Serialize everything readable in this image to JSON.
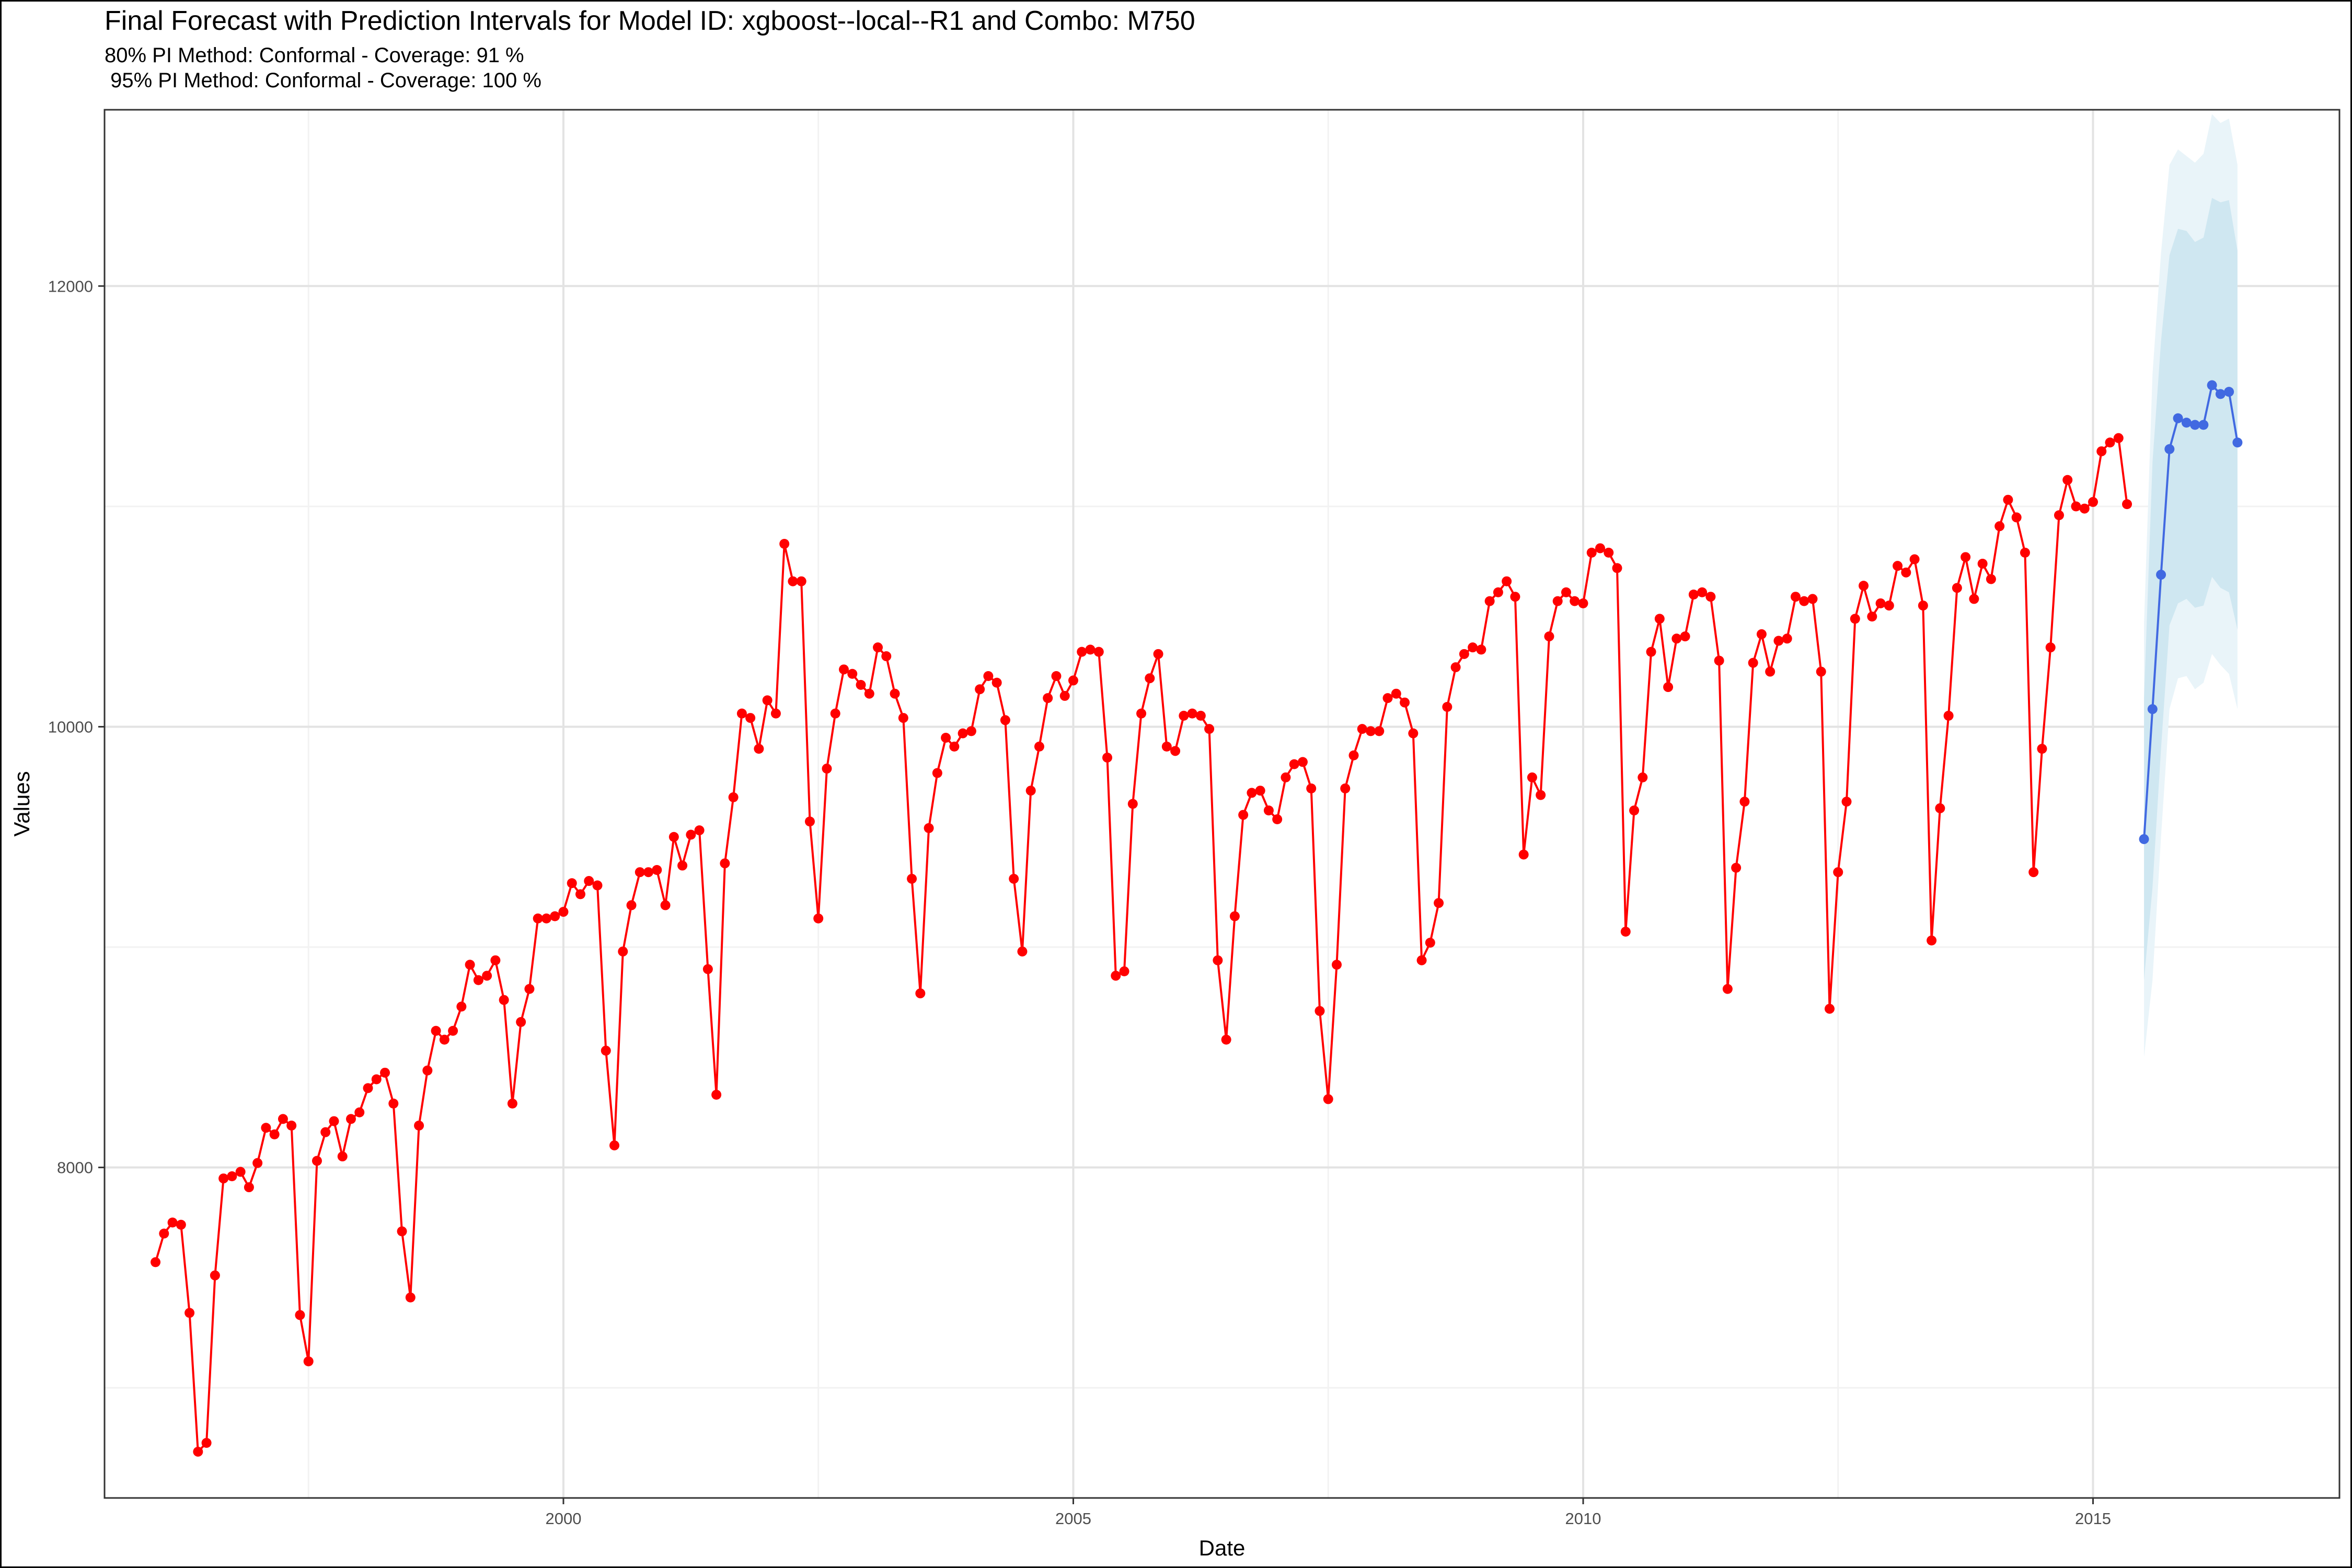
{
  "title": "Final Forecast with Prediction Intervals for Model ID: xgboost--local--R1 and Combo: M750",
  "subtitle_line1": "80% PI Method: Conformal - Coverage: 91 %",
  "subtitle_line2": " 95% PI Method: Conformal - Coverage: 100 %",
  "colors": {
    "actual": "#ff0000",
    "forecast": "#4169e1",
    "pi80": "#cfe7f1",
    "pi95": "#e9f4f9",
    "grid_major": "#e3e3e3",
    "grid_minor": "#f2f2f2",
    "panel_border": "#333333"
  },
  "chart_data": {
    "type": "line",
    "xlabel": "Date",
    "ylabel": "Values",
    "x_ticks": [
      "2000",
      "2005",
      "2010",
      "2015"
    ],
    "y_ticks": [
      8000,
      10000,
      12000
    ],
    "xlim": [
      "1995-07",
      "2017-06"
    ],
    "ylim": [
      6500,
      12800
    ],
    "grid": true,
    "legend": "none",
    "series": [
      {
        "role": "actual",
        "start": "1996-01",
        "step": "month",
        "values": [
          7570,
          7700,
          7750,
          7740,
          7340,
          6710,
          6750,
          7510,
          7950,
          7960,
          7980,
          7910,
          8020,
          8180,
          8150,
          8220,
          8190,
          7330,
          7120,
          8030,
          8160,
          8210,
          8050,
          8220,
          8250,
          8360,
          8400,
          8430,
          8290,
          7710,
          7410,
          8190,
          8440,
          8620,
          8580,
          8620,
          8730,
          8920,
          8850,
          8870,
          8940,
          8760,
          8290,
          8660,
          8810,
          9130,
          9130,
          9140,
          9160,
          9290,
          9240,
          9300,
          9280,
          8530,
          8100,
          8980,
          9190,
          9340,
          9340,
          9350,
          9190,
          9500,
          9370,
          9510,
          9530,
          8900,
          8330,
          9380,
          9680,
          10060,
          10040,
          9900,
          10120,
          10060,
          10830,
          10660,
          10660,
          9570,
          9130,
          9810,
          10060,
          10260,
          10240,
          10190,
          10150,
          10360,
          10320,
          10150,
          10040,
          9310,
          8790,
          9540,
          9790,
          9950,
          9910,
          9970,
          9980,
          10170,
          10230,
          10200,
          10030,
          9310,
          8980,
          9710,
          9910,
          10130,
          10230,
          10140,
          10210,
          10340,
          10350,
          10340,
          9860,
          8870,
          8890,
          9650,
          10060,
          10220,
          10330,
          9910,
          9890,
          10050,
          10060,
          10050,
          9990,
          8940,
          8580,
          9140,
          9600,
          9700,
          9710,
          9620,
          9580,
          9770,
          9830,
          9840,
          9720,
          8710,
          8310,
          8920,
          9720,
          9870,
          9990,
          9980,
          9980,
          10130,
          10150,
          10110,
          9970,
          8940,
          9020,
          9200,
          10090,
          10270,
          10330,
          10360,
          10350,
          10570,
          10610,
          10660,
          10590,
          9420,
          9770,
          9690,
          10410,
          10570,
          10610,
          10570,
          10560,
          10790,
          10810,
          10790,
          10720,
          9070,
          9620,
          9770,
          10340,
          10490,
          10180,
          10400,
          10410,
          10600,
          10610,
          10590,
          10300,
          8810,
          9360,
          9660,
          10290,
          10420,
          10250,
          10390,
          10400,
          10590,
          10570,
          10580,
          10250,
          8720,
          9340,
          9660,
          10490,
          10640,
          10500,
          10560,
          10550,
          10730,
          10700,
          10760,
          10550,
          9030,
          9630,
          10050,
          10630,
          10770,
          10580,
          10740,
          10670,
          10910,
          11030,
          10950,
          10790,
          9340,
          9900,
          10360,
          10960,
          11120,
          11000,
          10990,
          11020,
          11250,
          11290,
          11310,
          11010
        ]
      },
      {
        "role": "forecast",
        "start": "2015-07",
        "step": "month",
        "values": [
          9490,
          10080,
          10690,
          11260,
          11400,
          11380,
          11370,
          11370,
          11550,
          11510,
          11520,
          11290
        ],
        "pi80_lower": [
          8850,
          9270,
          9900,
          10460,
          10560,
          10580,
          10540,
          10550,
          10680,
          10630,
          10610,
          10440
        ],
        "pi80_upper": [
          10130,
          11200,
          11750,
          12140,
          12260,
          12250,
          12200,
          12220,
          12400,
          12380,
          12390,
          12160
        ],
        "pi95_lower": [
          8500,
          8850,
          9500,
          10080,
          10220,
          10230,
          10170,
          10200,
          10330,
          10280,
          10240,
          10080
        ],
        "pi95_upper": [
          10470,
          11600,
          12150,
          12550,
          12620,
          12590,
          12560,
          12600,
          12780,
          12740,
          12760,
          12550
        ]
      }
    ]
  }
}
